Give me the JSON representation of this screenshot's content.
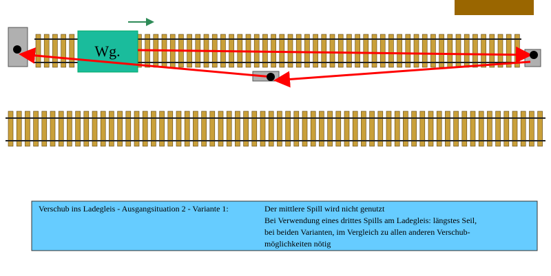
{
  "wagon": {
    "label": "Wg."
  },
  "caption": {
    "lead": "Verschub ins Ladegleis  -  Ausgangsituation 2  -  Variante 1:",
    "lines": [
      "Der mittlere Spill wird nicht genutzt",
      "Bei Verwendung eines drittes Spills am Ladegleis: längstes Seil,",
      "bei beiden Varianten, im Vergleich zu allen anderen Verschub-",
      "möglichkeiten nötig"
    ]
  }
}
